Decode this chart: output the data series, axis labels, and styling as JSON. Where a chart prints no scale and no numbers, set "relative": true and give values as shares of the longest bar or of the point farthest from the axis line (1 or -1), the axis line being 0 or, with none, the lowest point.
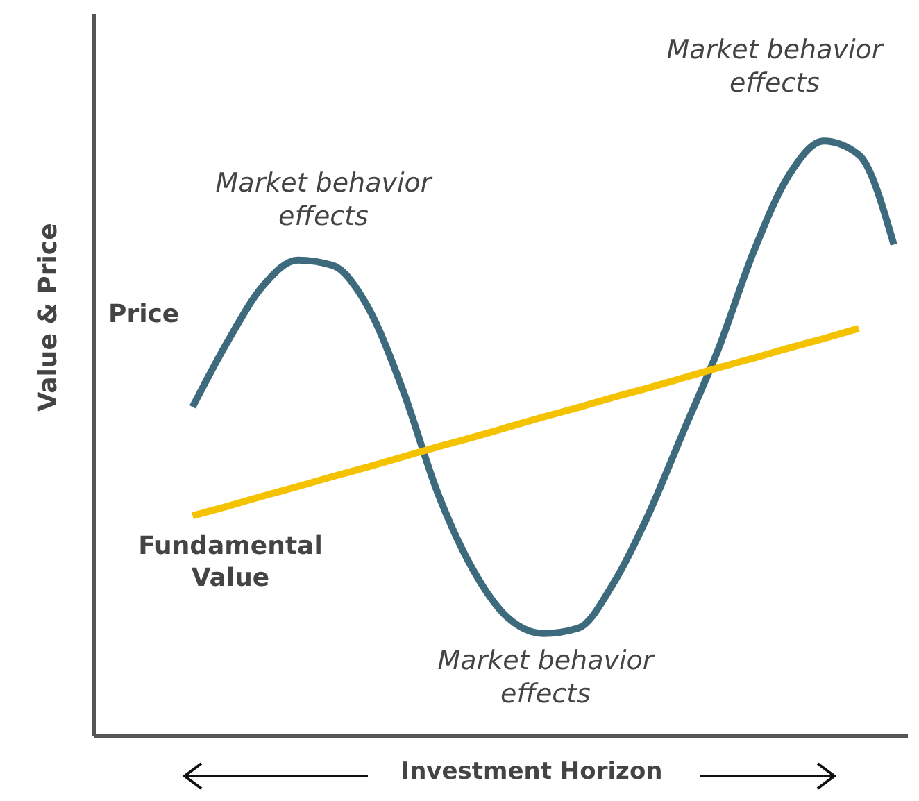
{
  "chart_data": {
    "type": "line",
    "relative": true,
    "xlabel": "Investment Horizon",
    "ylabel": "Value & Price",
    "categories": [
      null,
      null,
      null,
      null,
      null,
      null,
      null,
      null,
      null,
      null,
      null,
      null,
      null,
      null,
      null,
      null,
      null,
      null,
      null,
      null,
      null
    ],
    "series": [
      {
        "name": "Price",
        "color": "#3d6a7d",
        "values": [
          0.553,
          0.663,
          0.756,
          0.8,
          0.791,
          0.721,
          0.581,
          0.407,
          0.279,
          0.198,
          0.172,
          0.181,
          0.256,
          0.372,
          0.512,
          0.651,
          0.814,
          0.942,
          1,
          0.977,
          0.826
        ]
      },
      {
        "name": "Fundamental Value",
        "color": "#f5c200",
        "values": [
          0.37,
          0.386,
          0.403,
          0.419,
          0.436,
          0.452,
          0.469,
          0.486,
          0.502,
          0.519,
          0.536,
          0.552,
          0.569,
          0.585,
          0.602,
          0.619,
          0.635,
          0.652,
          0.668,
          0.685,
          null
        ]
      }
    ],
    "annotations": [
      "Market behavior effects",
      "Market behavior effects",
      "Market behavior effects"
    ],
    "legend": false,
    "marker": "none",
    "line_style": "solid",
    "grid": false
  }
}
